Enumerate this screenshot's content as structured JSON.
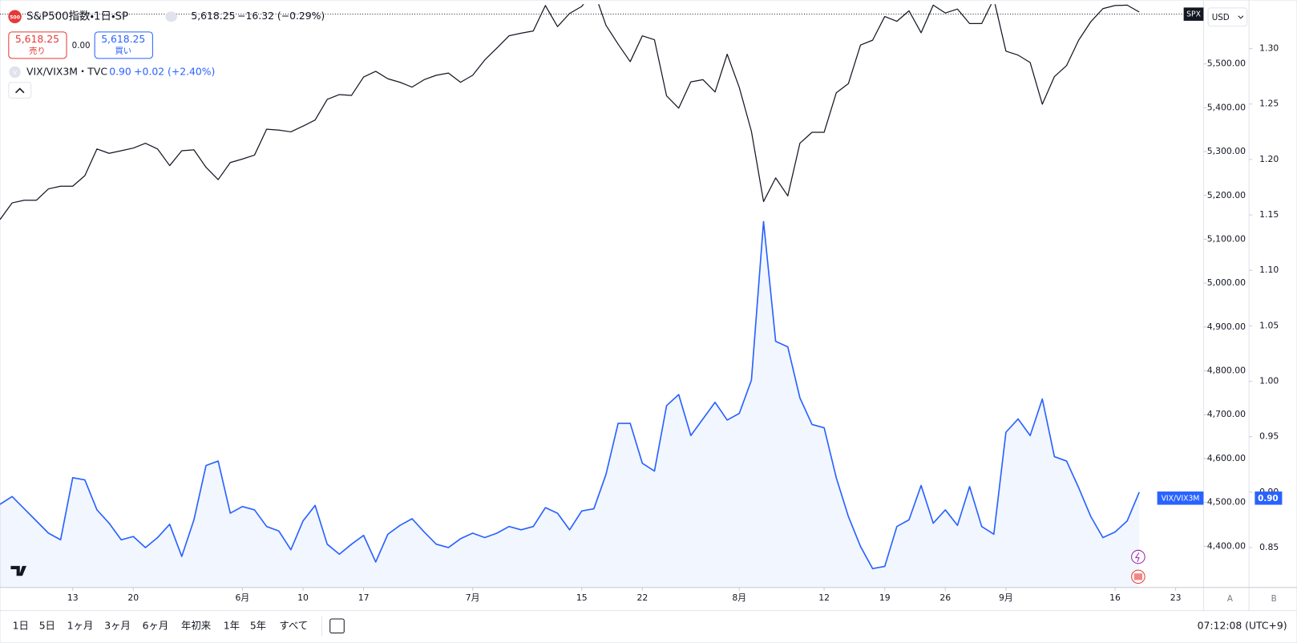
{
  "ui": {
    "symbol_badge": "500",
    "quote": "5,618.25",
    "change": "−16.32 (−0.29%)",
    "sell_price": "5,618.25",
    "sell": "売り",
    "spread": "0.00",
    "buy_price": "5,618.25",
    "buy": "買い",
    "vix_badge": "V",
    "vix_value": "0.90",
    "vix_change": "+0.02 (+2.40%)",
    "spx_tag": "SPX",
    "currency": "USD",
    "vix_tag": "VIX/VIX3M",
    "vix_tag_value": "0.90",
    "scale_a": "A",
    "scale_b": "B",
    "ranges": [
      "1日",
      "5日",
      "1ヶ月",
      "3ヶ月",
      "6ヶ月",
      "年初来",
      "1年",
      "5年",
      "すべて"
    ],
    "time": "07:12:08 (UTC+9)"
  },
  "chart_data": {
    "type": "line",
    "categories": [
      null,
      null,
      null,
      null,
      null,
      null,
      "13",
      null,
      null,
      null,
      null,
      "20",
      null,
      null,
      null,
      null,
      null,
      null,
      null,
      null,
      "6月",
      null,
      null,
      null,
      null,
      "10",
      null,
      null,
      null,
      null,
      "17",
      null,
      null,
      null,
      null,
      null,
      null,
      null,
      null,
      "7月",
      null,
      null,
      null,
      null,
      null,
      null,
      null,
      null,
      "15",
      null,
      null,
      null,
      null,
      "22",
      null,
      null,
      null,
      null,
      null,
      null,
      null,
      "8月",
      null,
      null,
      null,
      null,
      null,
      null,
      "12",
      null,
      null,
      null,
      null,
      "19",
      null,
      null,
      null,
      null,
      "26",
      null,
      null,
      null,
      null,
      "9月",
      null,
      null,
      null,
      null,
      null,
      null,
      null,
      null,
      "16",
      null,
      null,
      null,
      null,
      "23"
    ],
    "series": [
      {
        "name": "S&P500指数・1日・SP",
        "color": "#131722",
        "values": [
          5145,
          5183,
          5189,
          5189,
          5215,
          5221,
          5221,
          5245,
          5306,
          5296,
          5302,
          5308,
          5319,
          5306,
          5268,
          5302,
          5304,
          5264,
          5236,
          5275,
          5283,
          5292,
          5351,
          5349,
          5345,
          5358,
          5372,
          5419,
          5430,
          5428,
          5470,
          5483,
          5466,
          5458,
          5447,
          5464,
          5474,
          5479,
          5458,
          5474,
          5509,
          5536,
          5564,
          5570,
          5575,
          5633,
          5585,
          5615,
          5631,
          5667,
          5588,
          5545,
          5505,
          5564,
          5555,
          5427,
          5399,
          5459,
          5464,
          5436,
          5522,
          5446,
          5346,
          5186,
          5240,
          5199,
          5319,
          5344,
          5344,
          5434,
          5455,
          5543,
          5554,
          5608,
          5597,
          5621,
          5571,
          5634,
          5616,
          5625,
          5592,
          5592,
          5648,
          5529,
          5520,
          5503,
          5408,
          5471,
          5496,
          5554,
          5596,
          5626,
          5633,
          5634,
          5618.25,
          null,
          null,
          null
        ]
      },
      {
        "name": "VIX/VIX3M・TVC",
        "color": "#2962ff",
        "axis": "y2",
        "area": true,
        "values": [
          0.889,
          0.896,
          0.885,
          0.874,
          0.863,
          0.857,
          0.913,
          0.911,
          0.884,
          0.872,
          0.857,
          0.86,
          0.85,
          0.859,
          0.871,
          0.842,
          0.875,
          0.924,
          0.928,
          0.881,
          0.887,
          0.884,
          0.869,
          0.865,
          0.848,
          0.874,
          0.888,
          0.853,
          0.844,
          0.853,
          0.861,
          0.837,
          0.862,
          0.87,
          0.876,
          0.864,
          0.853,
          0.85,
          0.858,
          0.863,
          0.859,
          0.863,
          0.869,
          0.866,
          0.869,
          0.886,
          0.881,
          0.866,
          0.883,
          0.885,
          0.916,
          0.962,
          0.962,
          0.926,
          0.919,
          0.978,
          0.988,
          0.951,
          0.966,
          0.981,
          0.965,
          0.971,
          1.001,
          1.144,
          1.036,
          1.031,
          0.985,
          0.961,
          0.958,
          0.913,
          0.878,
          0.851,
          0.831,
          0.833,
          0.869,
          0.875,
          0.906,
          0.872,
          0.884,
          0.87,
          0.905,
          0.869,
          0.862,
          0.954,
          0.966,
          0.951,
          0.984,
          0.932,
          0.928,
          0.904,
          0.878,
          0.859,
          0.864,
          0.874,
          0.9,
          null,
          null,
          null
        ]
      }
    ],
    "ylim": [
      4306,
      5636
    ],
    "yticks": [
      {
        "value": 4400,
        "label": "4,400.00"
      },
      {
        "value": 4500,
        "label": "4,500.00"
      },
      {
        "value": 4600,
        "label": "4,600.00"
      },
      {
        "value": 4700,
        "label": "4,700.00"
      },
      {
        "value": 4800,
        "label": "4,800.00"
      },
      {
        "value": 4900,
        "label": "4,900.00"
      },
      {
        "value": 5000,
        "label": "5,000.00"
      },
      {
        "value": 5100,
        "label": "5,100.00"
      },
      {
        "value": 5200,
        "label": "5,200.00"
      },
      {
        "value": 5300,
        "label": "5,300.00"
      },
      {
        "value": 5400,
        "label": "5,400.00"
      },
      {
        "value": 5500,
        "label": "5,500.00"
      }
    ],
    "y2lim": [
      0.814,
      1.34
    ],
    "y2ticks": [
      0.85,
      {
        "value": 0.9,
        "label": "0.90"
      },
      0.95,
      {
        "value": 1,
        "label": "1.00"
      },
      1.05,
      {
        "value": 1.1,
        "label": "1.10"
      },
      1.15,
      {
        "value": 1.2,
        "label": "1.20"
      },
      1.25,
      {
        "value": 1.3,
        "label": "1.30"
      }
    ],
    "grid": false
  }
}
